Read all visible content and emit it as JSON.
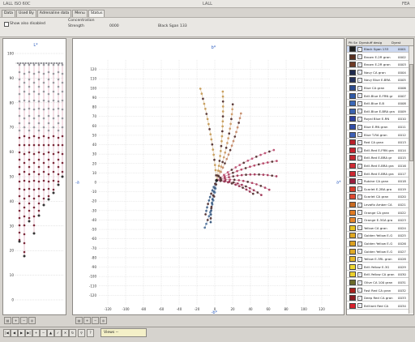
{
  "window": {
    "title_left": "LALL ISO 60C",
    "title_center": "LALL",
    "title_right": "FEA"
  },
  "tabs": [
    {
      "label": "Data"
    },
    {
      "label": "Used By"
    },
    {
      "label": "Adrenaline data"
    },
    {
      "label": "Menu"
    },
    {
      "label": "Status"
    }
  ],
  "infobar": {
    "show_also_disabled": "Show also disabled",
    "concentration_label": "Concentration",
    "strength_label": "Strength",
    "concentration_value": "0000",
    "selected_label": "Black Sgan 133"
  },
  "colors": {
    "accent": "#1b3da8",
    "panel_bg": "#ffffff",
    "chrome": "#d6d3ce"
  },
  "left_chart": {
    "y_ticks": [
      "100",
      "90",
      "80",
      "70",
      "60",
      "50",
      "40",
      "30",
      "20",
      "10",
      "0"
    ]
  },
  "main_chart": {
    "y_ticks": [
      "120",
      "110",
      "100",
      "90",
      "80",
      "70",
      "60",
      "50",
      "40",
      "30",
      "20",
      "10",
      "0",
      "-10",
      "-20",
      "-30",
      "-40",
      "-50",
      "-60",
      "-70",
      "-80",
      "-90",
      "-100",
      "-110",
      "-120"
    ],
    "x_ticks": [
      "-120",
      "-100",
      "-80",
      "-60",
      "-40",
      "-20",
      "0",
      "20",
      "40",
      "60",
      "80",
      "100",
      "120"
    ]
  },
  "legend": {
    "header": {
      "col1": "Pit",
      "col2": "Sel",
      "col3": "Dyestuff desig",
      "col4": "Dyest"
    },
    "rows": [
      {
        "name": "Black Sgan 133",
        "num": "0001",
        "color": "#1e1e1e"
      },
      {
        "name": "Brown E-2R gran",
        "num": "0002",
        "color": "#5a3020"
      },
      {
        "name": "Brown E-2R gran",
        "num": "0003",
        "color": "#6e3a26"
      },
      {
        "name": "Navy CA gran",
        "num": "0004",
        "color": "#1e2a4e"
      },
      {
        "name": "Navy Blue E-BRA",
        "num": "0005",
        "color": "#24305c"
      },
      {
        "name": "Blue CA gran",
        "num": "0006",
        "color": "#2a4a90"
      },
      {
        "name": "Brill.Blue E-FRN gr",
        "num": "0007",
        "color": "#2f5aa8"
      },
      {
        "name": "Brill.Blue E-B",
        "num": "0008",
        "color": "#3a68b8"
      },
      {
        "name": "Brill.Blue E-BRA gra",
        "num": "0009",
        "color": "#3b62b0"
      },
      {
        "name": "Royal Blue E-RN",
        "num": "0010",
        "color": "#2c3fa0"
      },
      {
        "name": "Blue E-RN gran",
        "num": "0011",
        "color": "#304ca8"
      },
      {
        "name": "Blue T-RA gran",
        "num": "0012",
        "color": "#3d5fb5"
      },
      {
        "name": "Red CA gran",
        "num": "0013",
        "color": "#b8202a"
      },
      {
        "name": "Brill.Red E-FRN gra",
        "num": "0014",
        "color": "#c8202e"
      },
      {
        "name": "Brill.Red E-BRA gr",
        "num": "0015",
        "color": "#c42630"
      },
      {
        "name": "Brill.Red E-BRA gra",
        "num": "0016",
        "color": "#d02a34"
      },
      {
        "name": "Brill.Red E-BRA gra",
        "num": "0017",
        "color": "#cc2832"
      },
      {
        "name": "Rubine CA gran",
        "num": "0018",
        "color": "#9a1e3e"
      },
      {
        "name": "Scarlet E-2BA gra",
        "num": "0019",
        "color": "#d83a2a"
      },
      {
        "name": "Scarlet CA gran",
        "num": "0020",
        "color": "#e04830"
      },
      {
        "name": "Levafix Amber CA",
        "num": "0021",
        "color": "#c86a22"
      },
      {
        "name": "Orange CA gran",
        "num": "0022",
        "color": "#e07a22"
      },
      {
        "name": "Orange E-3GA gra",
        "num": "0023",
        "color": "#e8862a"
      },
      {
        "name": "Yellow CA gran",
        "num": "0024",
        "color": "#e8c422"
      },
      {
        "name": "Golden Yellow E-G",
        "num": "0025",
        "color": "#e0a822"
      },
      {
        "name": "Golden Yellow E-G",
        "num": "0026",
        "color": "#dca020"
      },
      {
        "name": "Golden Yellow E-G",
        "num": "0027",
        "color": "#e0aa26"
      },
      {
        "name": "Yellow E-3RL gran",
        "num": "0028",
        "color": "#e8b828"
      },
      {
        "name": "Brill.Yellow E-3G",
        "num": "0029",
        "color": "#f0d830"
      },
      {
        "name": "Brill.Yellow CA gran",
        "num": "0030",
        "color": "#ecd02c"
      },
      {
        "name": "Olive CA 100 gran",
        "num": "0031",
        "color": "#6a6a2a"
      },
      {
        "name": "Fast Red CA gran",
        "num": "0032",
        "color": "#a8201e"
      },
      {
        "name": "Deep Red CA gran",
        "num": "0033",
        "color": "#8a1a22"
      },
      {
        "name": "Brilliant Red CA",
        "num": "0034",
        "color": "#d8202c"
      }
    ]
  },
  "status": {
    "view_label": "Views --"
  }
}
